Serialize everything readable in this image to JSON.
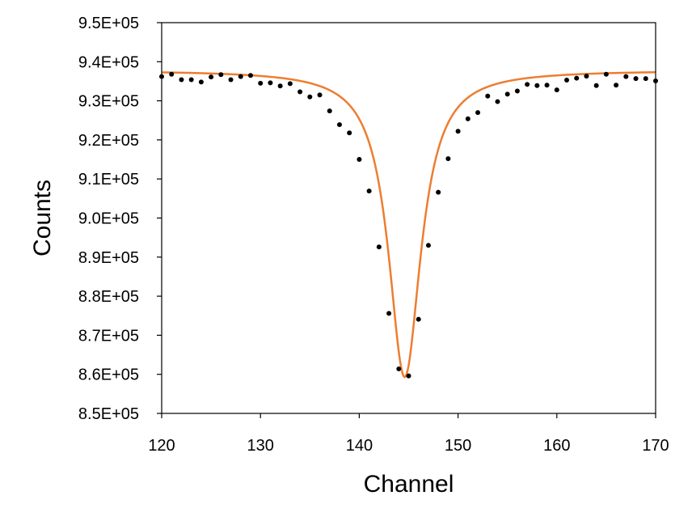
{
  "chart_data": {
    "type": "scatter",
    "title": "",
    "xlabel": "Channel",
    "ylabel": "Counts",
    "xlim": [
      120,
      170
    ],
    "ylim": [
      850000,
      950000
    ],
    "x_ticks": [
      120,
      130,
      140,
      150,
      160,
      170
    ],
    "x_tick_labels": [
      "120",
      "130",
      "140",
      "150",
      "160",
      "170"
    ],
    "y_ticks": [
      850000,
      860000,
      870000,
      880000,
      890000,
      900000,
      910000,
      920000,
      930000,
      940000,
      950000
    ],
    "y_tick_labels": [
      "8.5E+05",
      "8.6E+05",
      "8.7E+05",
      "8.8E+05",
      "8.9E+05",
      "9.0E+05",
      "9.1E+05",
      "9.2E+05",
      "9.3E+05",
      "9.4E+05",
      "9.5E+05"
    ],
    "grid": false,
    "legend": "none",
    "series": [
      {
        "kind": "points",
        "color": "#000000",
        "x": [
          120,
          121,
          122,
          123,
          124,
          125,
          126,
          127,
          128,
          129,
          130,
          131,
          132,
          133,
          134,
          135,
          136,
          137,
          138,
          139,
          140,
          141,
          142,
          143,
          144,
          145,
          146,
          147,
          148,
          149,
          150,
          151,
          152,
          153,
          154,
          155,
          156,
          157,
          158,
          159,
          160,
          161,
          162,
          163,
          164,
          165,
          166,
          167,
          168,
          169,
          170
        ],
        "y": [
          936200,
          936800,
          935400,
          935400,
          934800,
          936100,
          936700,
          935400,
          936200,
          936500,
          934500,
          934600,
          933800,
          934400,
          932300,
          931000,
          931500,
          927400,
          923900,
          921800,
          915000,
          906900,
          892600,
          875600,
          861400,
          859600,
          874100,
          893000,
          906600,
          915200,
          922200,
          925400,
          927000,
          931200,
          929800,
          931700,
          932500,
          934200,
          933900,
          934000,
          932800,
          935300,
          935800,
          936300,
          933900,
          936800,
          934000,
          936200,
          935700,
          935700,
          935100
        ]
      },
      {
        "kind": "fit",
        "color": "#ED7D31",
        "model": "lorentzian",
        "baseline": 937800,
        "depth": 78500,
        "center": 144.6,
        "hwhm": 2.0
      }
    ]
  }
}
